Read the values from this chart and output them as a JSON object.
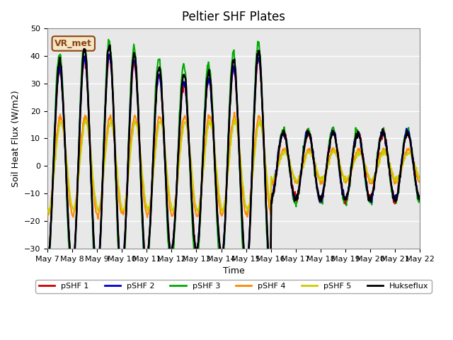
{
  "title": "Peltier SHF Plates",
  "xlabel": "Time",
  "ylabel": "Soil Heat Flux (W/m2)",
  "ylim": [
    -30,
    50
  ],
  "background_color": "#e8e8e8",
  "grid_color": "white",
  "annotation_text": "VR_met",
  "annotation_bg": "#f5e6c8",
  "annotation_border": "#8b4513",
  "series_colors": {
    "pSHF 1": "#cc0000",
    "pSHF 2": "#0000cc",
    "pSHF 3": "#00aa00",
    "pSHF 4": "#ff8800",
    "pSHF 5": "#cccc00",
    "Hukseflux": "#000000"
  },
  "series_linewidths": {
    "pSHF 1": 1.5,
    "pSHF 2": 1.5,
    "pSHF 3": 1.5,
    "pSHF 4": 1.5,
    "pSHF 5": 1.5,
    "Hukseflux": 1.8
  },
  "xtick_labels": [
    "May 7",
    "May 8",
    "May 9",
    "May 10",
    "May 11",
    "May 12",
    "May 13",
    "May 14",
    "May 15",
    "May 16",
    "May 17",
    "May 18",
    "May 19",
    "May 20",
    "May 21",
    "May 22"
  ],
  "n_days": 15,
  "samples_per_day": 48
}
